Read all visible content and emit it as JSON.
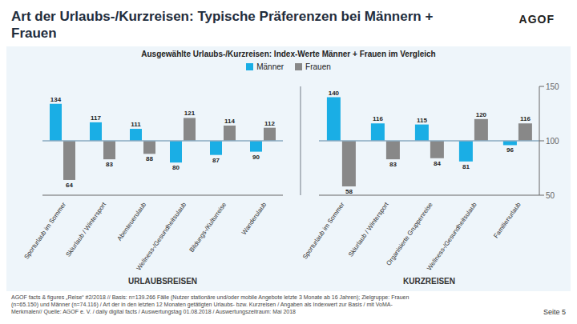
{
  "chart_data": [
    {
      "type": "bar",
      "title": "Art der Urlaubs-/Kurzreisen: Typische Präferenzen bei Männern + Frauen",
      "subtitle": "Ausgewählte Urlaubs-/Kurzreisen: Index-Werte Männer + Frauen im Vergleich",
      "xlabel": "URLAUBSREISEN",
      "categories": [
        "Sporturlaub im Sommer",
        "Skiurlaub / Wintersport",
        "Abenteuerulaub",
        "Wellness-/Gesundheitsulaub",
        "Bildungs-/Kulturreise",
        "Wanderulaub"
      ],
      "series": [
        {
          "name": "Männer",
          "color": "#1aaee5",
          "values": [
            134,
            117,
            111,
            80,
            87,
            90
          ]
        },
        {
          "name": "Frauen",
          "color": "#888888",
          "values": [
            64,
            83,
            88,
            121,
            114,
            112
          ]
        }
      ],
      "baseline": 100,
      "ylim": [
        50,
        150
      ],
      "tick_labels": "x",
      "grid": false,
      "legend": "top",
      "data_labels": true,
      "annotations": [
        "AGOF",
        "AGOF facts & figures „Reise“ #2/2018 // Basis: n=139.266 Fälle (Nutzer stationäre und/oder mobile Angebote letzte 3 Monate ab 16 Jahren); Zielgruppe: Frauen",
        "(n=65.150) und Männer (n=74.116) / Art der in den letzten 12 Monaten getätigten Urlaubs- bzw. Kurzreisen / Angaben als Indexwert zur Basis / mit VoMA-",
        "Merkmalen// Quelle: AGOF e. V. / daily digital facts / Auswertungstag 01.08.2018 / Auswertungszeitraum: Mai 2018",
        "Seite 5"
      ]
    },
    {
      "type": "bar",
      "xlabel": "KURZREISEN",
      "categories": [
        "Sporturlaub im Sommer",
        "Skiurlaub / Wintersport",
        "Organisierte Gruppenreise",
        "Wellness-/Gesundheitsulaub",
        "Familienurlaub"
      ],
      "series": [
        {
          "name": "Männer",
          "color": "#1aaee5",
          "values": [
            140,
            116,
            115,
            81,
            96
          ]
        },
        {
          "name": "Frauen",
          "color": "#888888",
          "values": [
            58,
            83,
            84,
            120,
            116
          ]
        }
      ],
      "baseline": 100,
      "ylim": [
        50,
        150
      ],
      "yticks": [
        50,
        100,
        150
      ],
      "grid": false,
      "data_labels": true
    }
  ]
}
